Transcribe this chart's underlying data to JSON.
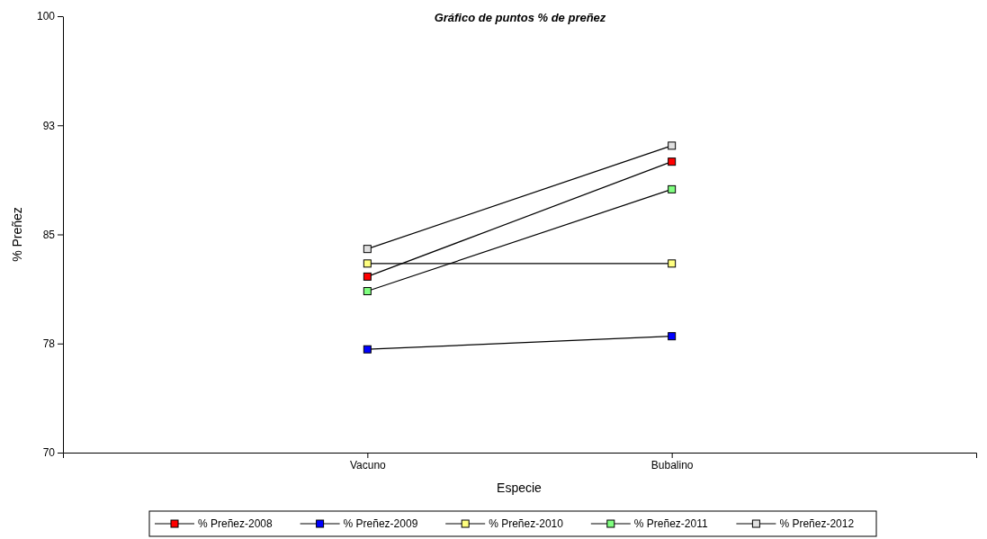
{
  "chart_data": {
    "type": "line",
    "title": "Gráfico de puntos % de preñez",
    "xlabel": "Especie",
    "ylabel": "% Preñez",
    "categories": [
      "Vacuno",
      "Bubalino"
    ],
    "ylim": [
      70,
      100
    ],
    "yticks": [
      70,
      {
        "value": 77.5,
        "label": "78"
      },
      85,
      {
        "value": 92.5,
        "label": "93"
      },
      100
    ],
    "grid": false,
    "legend": "bottom",
    "marker": "square",
    "line_style": "solid",
    "series": [
      {
        "name": "% Preñez-2008",
        "color": "#ff0000",
        "values": [
          82.1,
          90.0
        ]
      },
      {
        "name": "% Preñez-2009",
        "color": "#0000ff",
        "values": [
          77.1,
          78.0
        ]
      },
      {
        "name": "% Preñez-2010",
        "color": "#ffff80",
        "values": [
          83.0,
          83.0
        ]
      },
      {
        "name": "% Preñez-2011",
        "color": "#80ff80",
        "values": [
          81.1,
          88.1
        ]
      },
      {
        "name": "% Preñez-2012",
        "color": "#e0e0e0",
        "values": [
          84.0,
          91.1
        ]
      }
    ]
  }
}
